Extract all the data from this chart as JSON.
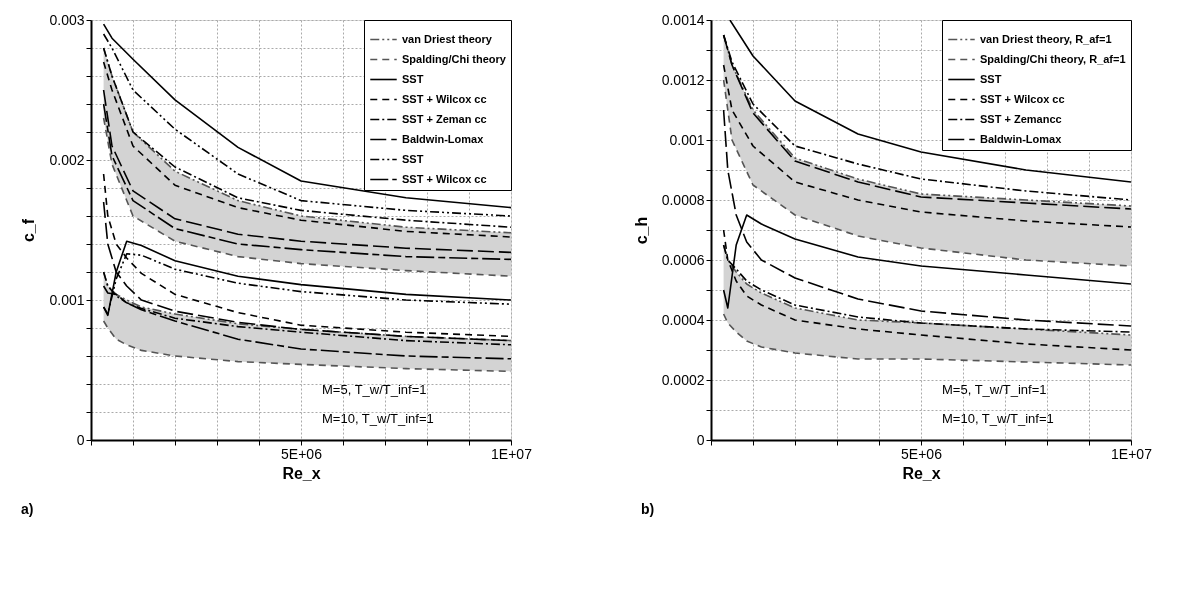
{
  "chart_data": [
    {
      "type": "line",
      "xlabel": "Re_x",
      "ylabel": "c_f",
      "xlim": [
        0,
        10000000
      ],
      "ylim": [
        0,
        0.003
      ],
      "xticks": [
        {
          "value": 0,
          "label": null
        },
        {
          "value": 1000000,
          "label": null
        },
        {
          "value": 2000000,
          "label": null
        },
        {
          "value": 3000000,
          "label": null
        },
        {
          "value": 4000000,
          "label": null
        },
        {
          "value": 5000000,
          "label": "5E+06"
        },
        {
          "value": 6000000,
          "label": null
        },
        {
          "value": 7000000,
          "label": null
        },
        {
          "value": 8000000,
          "label": null
        },
        {
          "value": 9000000,
          "label": null
        },
        {
          "value": 10000000,
          "label": "1E+07"
        }
      ],
      "yticks": [
        0,
        {
          "value": 0.0002,
          "label": null
        },
        {
          "value": 0.0004,
          "label": null
        },
        {
          "value": 0.0006,
          "label": null
        },
        {
          "value": 0.0008,
          "label": null
        },
        0.001,
        {
          "value": 0.0012,
          "label": null
        },
        {
          "value": 0.0014,
          "label": null
        },
        {
          "value": 0.0016,
          "label": null
        },
        {
          "value": 0.0018,
          "label": null
        },
        0.002,
        {
          "value": 0.0022,
          "label": null
        },
        {
          "value": 0.0024,
          "label": null
        },
        {
          "value": 0.0026,
          "label": null
        },
        {
          "value": 0.0028,
          "label": null
        },
        0.003
      ],
      "grid": true,
      "legend": "top right",
      "series": [
        {
          "name": "van Driest theory",
          "color": "#555555",
          "line_style": "dashdotdot",
          "x": [
            300000,
            500000,
            1000000,
            2000000,
            3500000,
            5000000,
            7500000,
            10000000,
            null,
            300000,
            400000,
            600000,
            850000,
            1200000,
            2000000,
            3500000,
            5000000,
            7500000,
            10000000
          ],
          "values": [
            0.0028,
            0.0026,
            0.0022,
            0.00192,
            0.00171,
            0.0016,
            0.00152,
            0.00148,
            null,
            0.0012,
            0.0011,
            0.00104,
            0.001,
            0.00095,
            0.0009,
            0.00083,
            0.00079,
            0.00074,
            0.00071
          ],
          "upper": [
            0.0028,
            0.0026,
            0.0022,
            0.00192,
            0.00171,
            0.0016,
            0.00152,
            0.00148,
            null,
            0.0012,
            0.0011,
            0.00104,
            0.001,
            0.00095,
            0.0009,
            0.00083,
            0.00079,
            0.00074,
            0.00071
          ],
          "lower": [
            0.0023,
            0.00197,
            0.0016,
            0.00142,
            0.00131,
            0.00126,
            0.00121,
            0.00117,
            null,
            0.00085,
            0.0008,
            0.00072,
            0.00068,
            0.00064,
            0.0006,
            0.00056,
            0.00054,
            0.00051,
            0.00049
          ]
        },
        {
          "name": "Spalding/Chi theory",
          "color": "#555555",
          "line_style": "dashed",
          "x": [
            300000,
            500000,
            1000000,
            2000000,
            3500000,
            5000000,
            7500000,
            10000000,
            null,
            300000,
            400000,
            600000,
            850000,
            1200000,
            2000000,
            3500000,
            5000000,
            7500000,
            10000000
          ],
          "values": [
            0.0023,
            0.00197,
            0.0016,
            0.00142,
            0.00131,
            0.00126,
            0.00121,
            0.00117,
            null,
            0.00085,
            0.0008,
            0.00072,
            0.00068,
            0.00064,
            0.0006,
            0.00056,
            0.00054,
            0.00051,
            0.00049
          ]
        },
        {
          "name": "SST",
          "color": "#000000",
          "line_style": "solid",
          "x": [
            300000,
            500000,
            1000000,
            2000000,
            3500000,
            5000000,
            7500000,
            10000000,
            null,
            300000,
            400000,
            600000,
            850000,
            1200000,
            2000000,
            3500000,
            5000000,
            7500000,
            10000000
          ],
          "values": [
            0.00297,
            0.00287,
            0.00272,
            0.00243,
            0.00209,
            0.00185,
            0.00173,
            0.00166,
            null,
            0.00095,
            0.00089,
            0.0012,
            0.00142,
            0.00139,
            0.00128,
            0.00117,
            0.00111,
            0.00104,
            0.001
          ]
        },
        {
          "name": "SST + Wilcox cc",
          "color": "#000000",
          "line_style": "dashed",
          "x": [
            300000,
            500000,
            1000000,
            2000000,
            3500000,
            5000000,
            7500000,
            10000000,
            null,
            300000,
            400000,
            600000,
            850000,
            1200000,
            2000000,
            3500000,
            5000000,
            7500000,
            10000000
          ],
          "values": [
            0.0027,
            0.0025,
            0.0021,
            0.00182,
            0.00166,
            0.00157,
            0.00149,
            0.00145,
            null,
            0.0019,
            0.0016,
            0.0014,
            0.0013,
            0.00119,
            0.00104,
            0.00091,
            0.00082,
            0.00077,
            0.00074
          ]
        },
        {
          "name": "SST + Zeman cc",
          "color": "#000000",
          "line_style": "dashdot",
          "x": [
            300000,
            500000,
            1000000,
            2000000,
            3500000,
            5000000,
            7500000,
            10000000,
            null,
            300000,
            400000,
            600000,
            850000,
            1200000,
            2000000,
            3500000,
            5000000,
            7500000,
            10000000
          ],
          "values": [
            0.0028,
            0.0026,
            0.0022,
            0.00195,
            0.00173,
            0.00164,
            0.00157,
            0.00152,
            null,
            0.0012,
            0.0011,
            0.00103,
            0.00098,
            0.00094,
            0.00087,
            0.00081,
            0.00077,
            0.00071,
            0.00068
          ]
        },
        {
          "name": "Baldwin-Lomax",
          "color": "#000000",
          "line_style": "longdash",
          "x": [
            300000,
            500000,
            1000000,
            2000000,
            3500000,
            5000000,
            7500000,
            10000000,
            null,
            300000,
            400000,
            600000,
            850000,
            1200000,
            2000000,
            3500000,
            5000000,
            7500000,
            10000000
          ],
          "values": [
            0.0025,
            0.0021,
            0.00178,
            0.00158,
            0.00147,
            0.00142,
            0.00137,
            0.00134,
            null,
            0.0017,
            0.0014,
            0.0012,
            0.0011,
            0.001,
            0.00092,
            0.00084,
            0.00079,
            0.00074,
            0.00071
          ]
        },
        {
          "name": "SST",
          "color": "#000000",
          "line_style": "dashdotdot",
          "x": [
            300000,
            500000,
            1000000,
            2000000,
            3500000,
            5000000,
            7500000,
            10000000,
            null,
            300000,
            400000,
            600000,
            850000,
            1200000,
            2000000,
            3500000,
            5000000,
            7500000,
            10000000
          ],
          "values": [
            0.0029,
            0.0028,
            0.0025,
            0.00222,
            0.0019,
            0.00171,
            0.00164,
            0.0016,
            null,
            0.00095,
            0.0009,
            0.00115,
            0.00133,
            0.00132,
            0.00122,
            0.00112,
            0.00106,
            0.001,
            0.00097
          ]
        },
        {
          "name": "SST + Wilcox cc",
          "color": "#000000",
          "line_style": "longshortdash",
          "x": [
            300000,
            500000,
            1000000,
            2000000,
            3500000,
            5000000,
            7500000,
            10000000,
            null,
            300000,
            400000,
            600000,
            850000,
            1200000,
            2000000,
            3500000,
            5000000,
            7500000,
            10000000
          ],
          "values": [
            0.0024,
            0.00203,
            0.00171,
            0.00151,
            0.0014,
            0.00136,
            0.00131,
            0.00129,
            null,
            0.0011,
            0.00105,
            0.00104,
            0.00098,
            0.00093,
            0.00085,
            0.00072,
            0.00065,
            0.0006,
            0.00058
          ]
        }
      ],
      "annotations": [
        "M=5, T_w/T_inf=1",
        "M=10, T_w/T_inf=1",
        "a)"
      ]
    },
    {
      "type": "line",
      "xlabel": "Re_x",
      "ylabel": "c_h",
      "xlim": [
        0,
        10000000
      ],
      "ylim": [
        0,
        0.0014
      ],
      "xticks": [
        {
          "value": 0,
          "label": null
        },
        {
          "value": 1000000,
          "label": null
        },
        {
          "value": 2000000,
          "label": null
        },
        {
          "value": 3000000,
          "label": null
        },
        {
          "value": 4000000,
          "label": null
        },
        {
          "value": 5000000,
          "label": "5E+06"
        },
        {
          "value": 6000000,
          "label": null
        },
        {
          "value": 7000000,
          "label": null
        },
        {
          "value": 8000000,
          "label": null
        },
        {
          "value": 9000000,
          "label": null
        },
        {
          "value": 10000000,
          "label": "1E+07"
        }
      ],
      "yticks": [
        0,
        {
          "value": 0.0001,
          "label": null
        },
        0.0002,
        {
          "value": 0.0003,
          "label": null
        },
        0.0004,
        {
          "value": 0.0005,
          "label": null
        },
        0.0006,
        {
          "value": 0.0007,
          "label": null
        },
        0.0008,
        {
          "value": 0.0009,
          "label": null
        },
        0.001,
        {
          "value": 0.0011,
          "label": null
        },
        0.0012,
        {
          "value": 0.0013,
          "label": null
        },
        0.0014
      ],
      "grid": true,
      "legend": "top right",
      "series": [
        {
          "name": "van Driest theory, R_af=1",
          "color": "#555555",
          "line_style": "dashdotdot",
          "x": [
            300000,
            500000,
            1000000,
            2000000,
            3500000,
            5000000,
            7500000,
            10000000,
            null,
            300000,
            400000,
            600000,
            850000,
            1200000,
            2000000,
            3500000,
            5000000,
            7500000,
            10000000
          ],
          "values": [
            0.00135,
            0.00125,
            0.0011,
            0.00094,
            0.00087,
            0.00082,
            0.0008,
            0.00078,
            null,
            0.00065,
            0.0006,
            0.00056,
            0.00052,
            0.00049,
            0.00044,
            0.0004,
            0.00039,
            0.00037,
            0.00035
          ],
          "upper": [
            0.00135,
            0.00125,
            0.0011,
            0.00094,
            0.00087,
            0.00082,
            0.0008,
            0.00078,
            null,
            0.00065,
            0.0006,
            0.00056,
            0.00052,
            0.00049,
            0.00044,
            0.0004,
            0.00039,
            0.00037,
            0.00035
          ],
          "lower": [
            0.0012,
            0.001,
            0.00085,
            0.00075,
            0.00068,
            0.00064,
            0.0006,
            0.00058,
            null,
            0.00042,
            0.00039,
            0.00036,
            0.00033,
            0.00031,
            0.00029,
            0.00027,
            0.00027,
            0.00026,
            0.00025
          ]
        },
        {
          "name": "Spalding/Chi theory, R_af=1",
          "color": "#555555",
          "line_style": "dashed",
          "x": [
            300000,
            500000,
            1000000,
            2000000,
            3500000,
            5000000,
            7500000,
            10000000,
            null,
            300000,
            400000,
            600000,
            850000,
            1200000,
            2000000,
            3500000,
            5000000,
            7500000,
            10000000
          ],
          "values": [
            0.0012,
            0.001,
            0.00085,
            0.00075,
            0.00068,
            0.00064,
            0.0006,
            0.00058,
            null,
            0.00042,
            0.00039,
            0.00036,
            0.00033,
            0.00031,
            0.00029,
            0.00027,
            0.00027,
            0.00026,
            0.00025
          ]
        },
        {
          "name": "SST",
          "color": "#000000",
          "line_style": "solid",
          "x": [
            450000,
            1000000,
            2000000,
            3500000,
            5000000,
            7500000,
            10000000,
            null,
            300000,
            400000,
            600000,
            850000,
            1200000,
            2000000,
            3500000,
            5000000,
            7500000,
            10000000
          ],
          "values": [
            0.0014,
            0.00128,
            0.00113,
            0.00102,
            0.00096,
            0.0009,
            0.00086,
            null,
            0.0005,
            0.00044,
            0.00065,
            0.00075,
            0.00072,
            0.00067,
            0.00061,
            0.00058,
            0.00055,
            0.00052
          ]
        },
        {
          "name": "SST + Wilcox cc",
          "color": "#000000",
          "line_style": "dashed",
          "x": [
            300000,
            500000,
            1000000,
            2000000,
            3500000,
            5000000,
            7500000,
            10000000,
            null,
            300000,
            400000,
            600000,
            850000,
            1200000,
            2000000,
            3500000,
            5000000,
            7500000,
            10000000
          ],
          "values": [
            0.00125,
            0.0011,
            0.00098,
            0.00086,
            0.0008,
            0.00076,
            0.00073,
            0.00071,
            null,
            0.0007,
            0.0006,
            0.00053,
            0.00048,
            0.00045,
            0.0004,
            0.00037,
            0.00035,
            0.00032,
            0.0003
          ]
        },
        {
          "name": "SST + Zemancc",
          "color": "#000000",
          "line_style": "dashdot",
          "x": [
            300000,
            500000,
            1000000,
            2000000,
            3500000,
            5000000,
            7500000,
            10000000,
            null,
            300000,
            400000,
            600000,
            850000,
            1200000,
            2000000,
            3500000,
            5000000,
            7500000,
            10000000
          ],
          "values": [
            0.00135,
            0.00126,
            0.00112,
            0.00098,
            0.00092,
            0.00087,
            0.00083,
            0.0008,
            null,
            0.00065,
            0.0006,
            0.00057,
            0.00053,
            0.0005,
            0.00045,
            0.00041,
            0.00039,
            0.00037,
            0.00036
          ]
        },
        {
          "name": "Baldwin-Lomax",
          "color": "#000000",
          "line_style": "longdash",
          "x": [
            300000,
            500000,
            1000000,
            2000000,
            3500000,
            5000000,
            7500000,
            10000000,
            null,
            300000,
            400000,
            600000,
            850000,
            1200000,
            2000000,
            3500000,
            5000000,
            7500000,
            10000000
          ],
          "values": [
            0.00135,
            0.00125,
            0.00109,
            0.00093,
            0.00086,
            0.00081,
            0.00079,
            0.00077,
            null,
            0.0011,
            0.0009,
            0.00075,
            0.00066,
            0.0006,
            0.00054,
            0.00047,
            0.00043,
            0.0004,
            0.00038
          ]
        }
      ],
      "annotations": [
        "M=5, T_w/T_inf=1",
        "M=10, T_w/T_inf=1",
        "b)"
      ]
    }
  ]
}
